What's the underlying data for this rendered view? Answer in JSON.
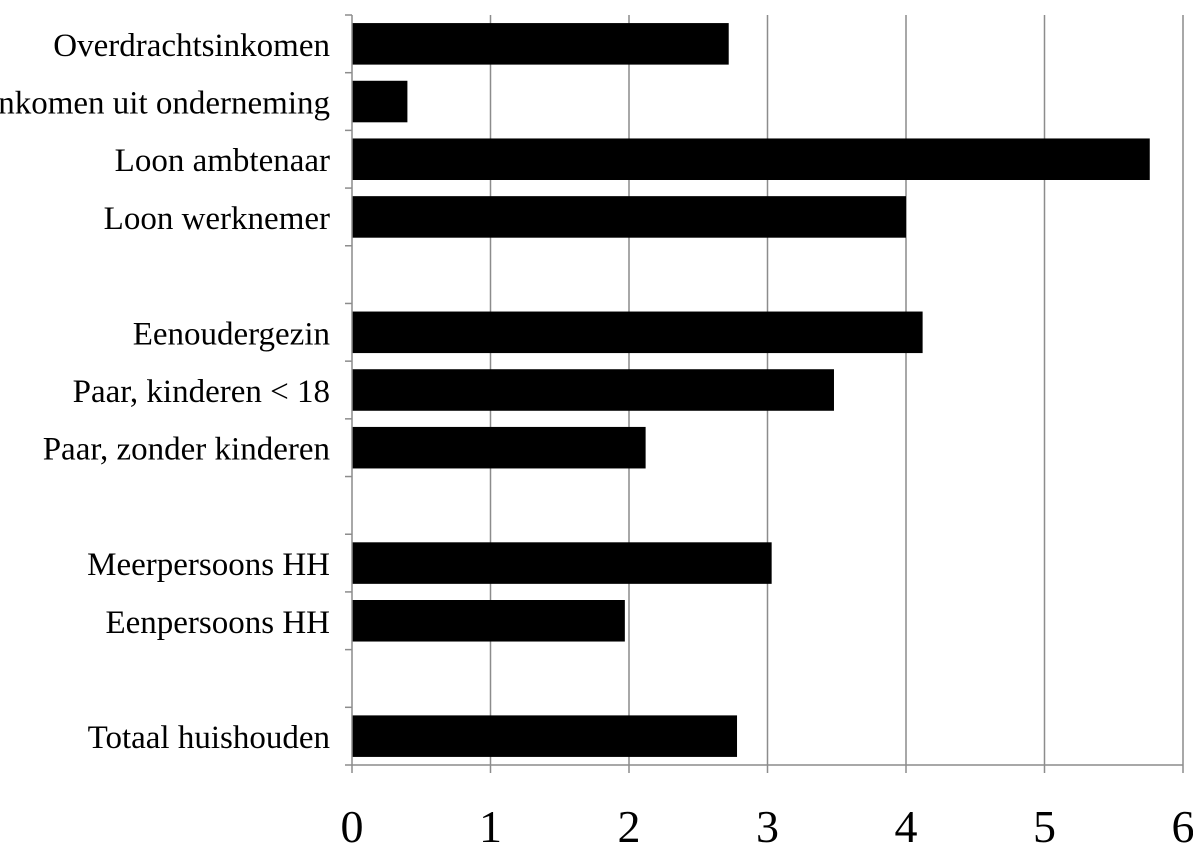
{
  "chart_data": {
    "type": "bar",
    "orientation": "horizontal",
    "title": "",
    "xlabel": "",
    "ylabel": "",
    "xlim": [
      0,
      6
    ],
    "xticks": [
      "0",
      "1",
      "2",
      "3",
      "4",
      "5",
      "6"
    ],
    "grid": "vertical",
    "legend": "none",
    "bar_color": "#000000",
    "categories": [
      "Overdrachtsinkomen",
      "Inkomen uit onderneming",
      "Loon ambtenaar",
      "Loon werknemer",
      "",
      "Eenoudergezin",
      "Paar, kinderen < 18",
      "Paar, zonder kinderen",
      "",
      "Meerpersoons HH",
      "Eenpersoons HH",
      "",
      "Totaal huishouden"
    ],
    "values": [
      2.72,
      0.4,
      5.76,
      4.0,
      null,
      4.12,
      3.48,
      2.12,
      null,
      3.03,
      1.97,
      null,
      2.78
    ]
  }
}
